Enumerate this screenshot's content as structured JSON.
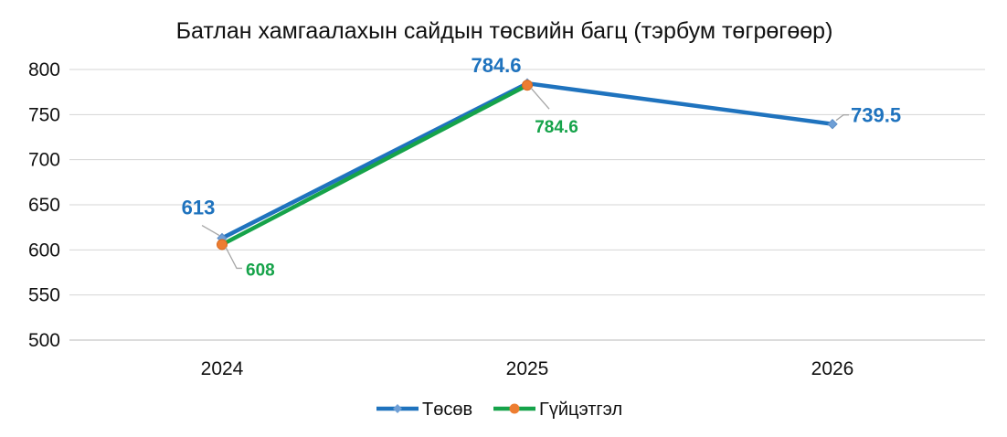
{
  "chart_data": {
    "type": "line",
    "title": "Батлан хамгаалахын сайдын төсвийн багц (тэрбум төгрөгөөр)",
    "xlabel": "",
    "ylabel": "",
    "categories": [
      "2024",
      "2025",
      "2026"
    ],
    "ylim": [
      500,
      800
    ],
    "yticks": [
      500,
      550,
      600,
      650,
      700,
      750,
      800
    ],
    "grid": true,
    "legend_position": "bottom",
    "series": [
      {
        "name": "Төсөв",
        "values": [
          613,
          784.6,
          739.5
        ],
        "labels": [
          "613",
          "784.6",
          "739.5"
        ],
        "color": "#1f73be",
        "marker": "diamond"
      },
      {
        "name": "Гүйцэтгэл",
        "values": [
          608,
          784.6,
          null
        ],
        "labels": [
          "608",
          "784.6",
          ""
        ],
        "color": "#16a34a",
        "marker_color": "#ed7d31",
        "marker": "circle"
      }
    ]
  }
}
